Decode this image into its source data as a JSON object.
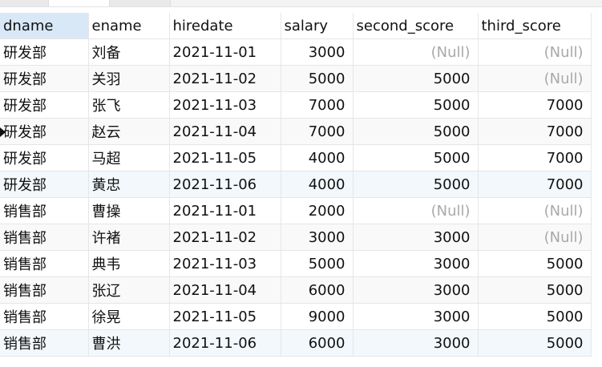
{
  "columns": [
    "dname",
    "ename",
    "hiredate",
    "salary",
    "second_score",
    "third_score"
  ],
  "null_label": "(Null)",
  "rows": [
    [
      "研发部",
      "刘备",
      "2021-11-01",
      "3000",
      "(Null)",
      "(Null)"
    ],
    [
      "研发部",
      "关羽",
      "2021-11-02",
      "5000",
      "5000",
      "(Null)"
    ],
    [
      "研发部",
      "张飞",
      "2021-11-03",
      "7000",
      "5000",
      "7000"
    ],
    [
      "研发部",
      "赵云",
      "2021-11-04",
      "7000",
      "5000",
      "7000"
    ],
    [
      "研发部",
      "马超",
      "2021-11-05",
      "4000",
      "5000",
      "7000"
    ],
    [
      "研发部",
      "黄忠",
      "2021-11-06",
      "4000",
      "5000",
      "7000"
    ],
    [
      "销售部",
      "曹操",
      "2021-11-01",
      "2000",
      "(Null)",
      "(Null)"
    ],
    [
      "销售部",
      "许褚",
      "2021-11-02",
      "3000",
      "3000",
      "(Null)"
    ],
    [
      "销售部",
      "典韦",
      "2021-11-03",
      "5000",
      "3000",
      "5000"
    ],
    [
      "销售部",
      "张辽",
      "2021-11-04",
      "6000",
      "3000",
      "5000"
    ],
    [
      "销售部",
      "徐晃",
      "2021-11-05",
      "9000",
      "3000",
      "5000"
    ],
    [
      "销售部",
      "曹洪",
      "2021-11-06",
      "6000",
      "3000",
      "5000"
    ]
  ],
  "selected_column": "dname",
  "current_row_marker_icon": "triangle-right-icon",
  "colors": {
    "selected_header_bg": "#d9e8f7",
    "null_text": "#a9a9a9",
    "grid_line": "#e6e6e6"
  }
}
